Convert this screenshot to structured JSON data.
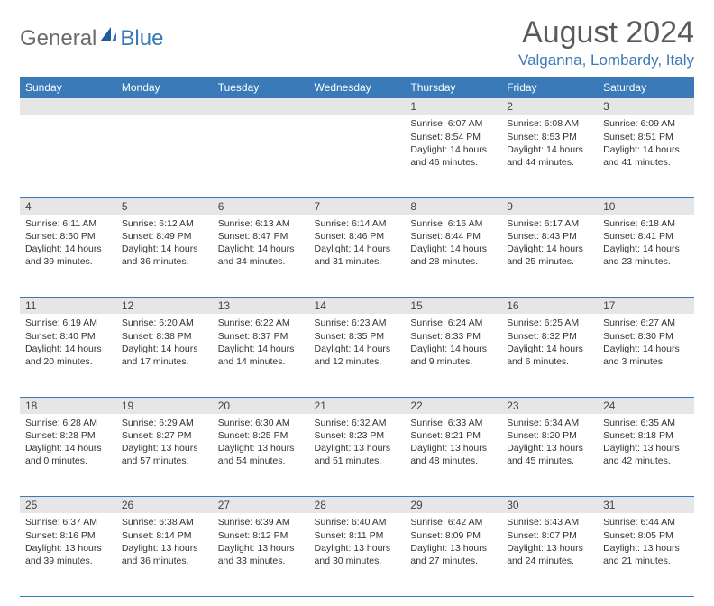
{
  "logo": {
    "part1": "General",
    "part2": "Blue"
  },
  "title": "August 2024",
  "location": "Valganna, Lombardy, Italy",
  "colors": {
    "header_bg": "#3a7ab8",
    "header_text": "#ffffff",
    "daynum_bg": "#e6e6e6",
    "border": "#3a7ab8",
    "text": "#333333",
    "logo_gray": "#6b6b6b",
    "logo_blue": "#3a7ab8",
    "title_color": "#5a5a5a"
  },
  "typography": {
    "title_fontsize": 34,
    "location_fontsize": 17,
    "header_fontsize": 12,
    "daynum_fontsize": 12,
    "body_fontsize": 10.5
  },
  "day_headers": [
    "Sunday",
    "Monday",
    "Tuesday",
    "Wednesday",
    "Thursday",
    "Friday",
    "Saturday"
  ],
  "weeks": [
    [
      null,
      null,
      null,
      null,
      {
        "n": "1",
        "sr": "6:07 AM",
        "ss": "8:54 PM",
        "dl": "14 hours and 46 minutes."
      },
      {
        "n": "2",
        "sr": "6:08 AM",
        "ss": "8:53 PM",
        "dl": "14 hours and 44 minutes."
      },
      {
        "n": "3",
        "sr": "6:09 AM",
        "ss": "8:51 PM",
        "dl": "14 hours and 41 minutes."
      }
    ],
    [
      {
        "n": "4",
        "sr": "6:11 AM",
        "ss": "8:50 PM",
        "dl": "14 hours and 39 minutes."
      },
      {
        "n": "5",
        "sr": "6:12 AM",
        "ss": "8:49 PM",
        "dl": "14 hours and 36 minutes."
      },
      {
        "n": "6",
        "sr": "6:13 AM",
        "ss": "8:47 PM",
        "dl": "14 hours and 34 minutes."
      },
      {
        "n": "7",
        "sr": "6:14 AM",
        "ss": "8:46 PM",
        "dl": "14 hours and 31 minutes."
      },
      {
        "n": "8",
        "sr": "6:16 AM",
        "ss": "8:44 PM",
        "dl": "14 hours and 28 minutes."
      },
      {
        "n": "9",
        "sr": "6:17 AM",
        "ss": "8:43 PM",
        "dl": "14 hours and 25 minutes."
      },
      {
        "n": "10",
        "sr": "6:18 AM",
        "ss": "8:41 PM",
        "dl": "14 hours and 23 minutes."
      }
    ],
    [
      {
        "n": "11",
        "sr": "6:19 AM",
        "ss": "8:40 PM",
        "dl": "14 hours and 20 minutes."
      },
      {
        "n": "12",
        "sr": "6:20 AM",
        "ss": "8:38 PM",
        "dl": "14 hours and 17 minutes."
      },
      {
        "n": "13",
        "sr": "6:22 AM",
        "ss": "8:37 PM",
        "dl": "14 hours and 14 minutes."
      },
      {
        "n": "14",
        "sr": "6:23 AM",
        "ss": "8:35 PM",
        "dl": "14 hours and 12 minutes."
      },
      {
        "n": "15",
        "sr": "6:24 AM",
        "ss": "8:33 PM",
        "dl": "14 hours and 9 minutes."
      },
      {
        "n": "16",
        "sr": "6:25 AM",
        "ss": "8:32 PM",
        "dl": "14 hours and 6 minutes."
      },
      {
        "n": "17",
        "sr": "6:27 AM",
        "ss": "8:30 PM",
        "dl": "14 hours and 3 minutes."
      }
    ],
    [
      {
        "n": "18",
        "sr": "6:28 AM",
        "ss": "8:28 PM",
        "dl": "14 hours and 0 minutes."
      },
      {
        "n": "19",
        "sr": "6:29 AM",
        "ss": "8:27 PM",
        "dl": "13 hours and 57 minutes."
      },
      {
        "n": "20",
        "sr": "6:30 AM",
        "ss": "8:25 PM",
        "dl": "13 hours and 54 minutes."
      },
      {
        "n": "21",
        "sr": "6:32 AM",
        "ss": "8:23 PM",
        "dl": "13 hours and 51 minutes."
      },
      {
        "n": "22",
        "sr": "6:33 AM",
        "ss": "8:21 PM",
        "dl": "13 hours and 48 minutes."
      },
      {
        "n": "23",
        "sr": "6:34 AM",
        "ss": "8:20 PM",
        "dl": "13 hours and 45 minutes."
      },
      {
        "n": "24",
        "sr": "6:35 AM",
        "ss": "8:18 PM",
        "dl": "13 hours and 42 minutes."
      }
    ],
    [
      {
        "n": "25",
        "sr": "6:37 AM",
        "ss": "8:16 PM",
        "dl": "13 hours and 39 minutes."
      },
      {
        "n": "26",
        "sr": "6:38 AM",
        "ss": "8:14 PM",
        "dl": "13 hours and 36 minutes."
      },
      {
        "n": "27",
        "sr": "6:39 AM",
        "ss": "8:12 PM",
        "dl": "13 hours and 33 minutes."
      },
      {
        "n": "28",
        "sr": "6:40 AM",
        "ss": "8:11 PM",
        "dl": "13 hours and 30 minutes."
      },
      {
        "n": "29",
        "sr": "6:42 AM",
        "ss": "8:09 PM",
        "dl": "13 hours and 27 minutes."
      },
      {
        "n": "30",
        "sr": "6:43 AM",
        "ss": "8:07 PM",
        "dl": "13 hours and 24 minutes."
      },
      {
        "n": "31",
        "sr": "6:44 AM",
        "ss": "8:05 PM",
        "dl": "13 hours and 21 minutes."
      }
    ]
  ],
  "labels": {
    "sunrise": "Sunrise:",
    "sunset": "Sunset:",
    "daylight": "Daylight:"
  }
}
